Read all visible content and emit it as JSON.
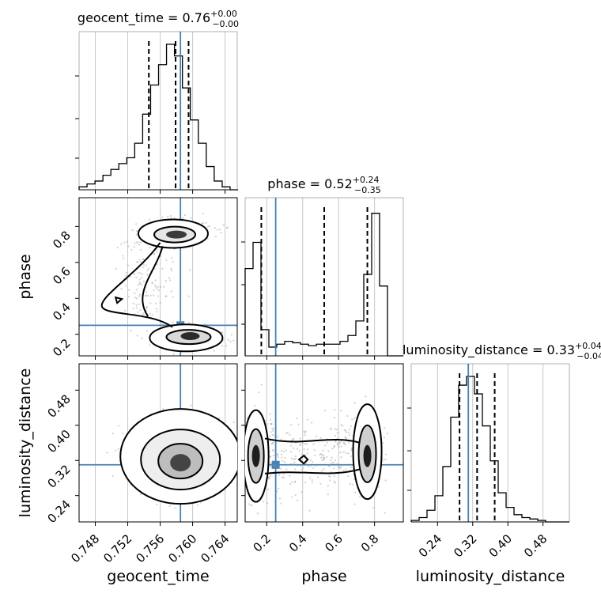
{
  "chart_data": {
    "type": "corner",
    "parameters": [
      "geocent_time",
      "phase",
      "luminosity_distance"
    ],
    "truth": {
      "geocent_time": 0.7585,
      "phase": 0.25,
      "luminosity_distance": 0.31
    },
    "titles": [
      {
        "name": "geocent_time",
        "median": "0.76",
        "plus": "+0.00",
        "minus": "−0.00"
      },
      {
        "name": "phase",
        "median": "0.52",
        "plus": "+0.24",
        "minus": "−0.35"
      },
      {
        "name": "luminosity_distance",
        "median": "0.33",
        "plus": "+0.04",
        "minus": "−0.04"
      }
    ],
    "axes": {
      "geocent_time": {
        "range": [
          0.746,
          0.7655
        ],
        "ticks": [
          0.748,
          0.752,
          0.756,
          0.76,
          0.764
        ],
        "tick_labels": [
          "0.748",
          "0.752",
          "0.756",
          "0.760",
          "0.764"
        ],
        "label": "geocent_time"
      },
      "phase": {
        "range": [
          0.08,
          0.96
        ],
        "ticks": [
          0.2,
          0.4,
          0.6,
          0.8
        ],
        "tick_labels": [
          "0.2",
          "0.4",
          "0.6",
          "0.8"
        ],
        "label": "phase"
      },
      "luminosity_distance": {
        "range": [
          0.18,
          0.54
        ],
        "ticks": [
          0.24,
          0.32,
          0.4,
          0.48
        ],
        "tick_labels": [
          "0.24",
          "0.32",
          "0.40",
          "0.48"
        ],
        "label": "luminosity_distance"
      }
    },
    "histograms": {
      "geocent_time": {
        "bin_start": 0.746,
        "bin_width": 0.00098,
        "counts": [
          0.02,
          0.04,
          0.06,
          0.1,
          0.14,
          0.18,
          0.22,
          0.32,
          0.52,
          0.72,
          0.86,
          1.0,
          0.92,
          0.7,
          0.48,
          0.32,
          0.16,
          0.06,
          0.02,
          0.0
        ],
        "quantiles": [
          0.7546,
          0.7579,
          0.7595
        ]
      },
      "phase": {
        "bin_start": 0.08,
        "bin_width": 0.044,
        "counts": [
          0.6,
          0.78,
          0.18,
          0.06,
          0.08,
          0.1,
          0.09,
          0.08,
          0.07,
          0.08,
          0.08,
          0.08,
          0.1,
          0.14,
          0.24,
          0.56,
          0.98,
          0.48,
          0.0,
          0.0
        ],
        "quantiles": [
          0.17,
          0.52,
          0.76
        ]
      },
      "luminosity_distance": {
        "bin_start": 0.18,
        "bin_width": 0.018,
        "counts": [
          0.01,
          0.03,
          0.08,
          0.18,
          0.38,
          0.72,
          0.94,
          1.0,
          0.88,
          0.66,
          0.42,
          0.2,
          0.1,
          0.05,
          0.03,
          0.02,
          0.01,
          0.0,
          0.0,
          0.0
        ],
        "quantiles": [
          0.29,
          0.33,
          0.37
        ]
      }
    },
    "grid": true,
    "colors": {
      "truth": "#4682b4",
      "hist": "#000000",
      "points": "#9a9a9a",
      "grid": "#c8c8c8"
    }
  }
}
